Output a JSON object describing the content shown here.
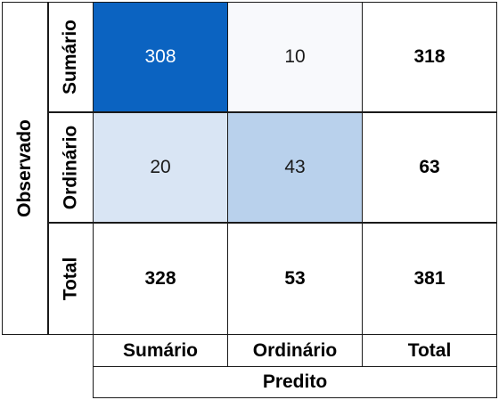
{
  "chart_data": {
    "type": "heatmap",
    "title": "",
    "xlabel": "Predito",
    "ylabel": "Observado",
    "x_categories": [
      "Sumário",
      "Ordinário"
    ],
    "y_categories": [
      "Sumário",
      "Ordinário"
    ],
    "values": [
      [
        308,
        10
      ],
      [
        20,
        43
      ]
    ],
    "row_totals": [
      318,
      63
    ],
    "col_totals": [
      328,
      53
    ],
    "grand_total": 381,
    "total_label": "Total",
    "colormap": {
      "low": "#f8f9fc",
      "high": "#0b63c1"
    },
    "light_text": "#ffffff",
    "dark_text": "#1a1a1a"
  }
}
